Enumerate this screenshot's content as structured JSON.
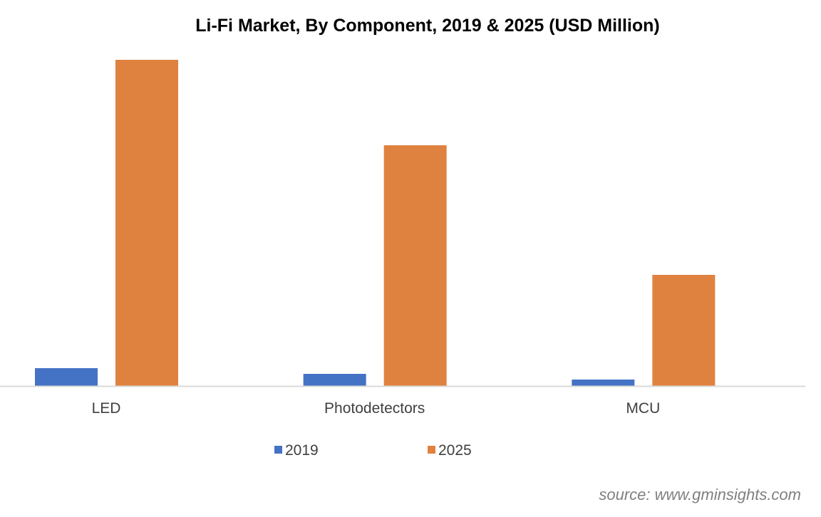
{
  "chart_data": {
    "type": "bar",
    "title": "Li-Fi Market, By Component, 2019 & 2025 (USD Million)",
    "categories": [
      "LED",
      "Photodetectors",
      "MCU"
    ],
    "series": [
      {
        "name": "2019",
        "color": "#4472c4",
        "values": [
          25,
          17,
          9
        ]
      },
      {
        "name": "2025",
        "color": "#e0823f",
        "values": [
          458,
          338,
          156
        ]
      }
    ],
    "ylim": [
      0,
      470
    ],
    "y_axis_shown": false,
    "grid": false,
    "legend": "bottom-center",
    "xlabel": "",
    "ylabel": ""
  },
  "source": "source: www.gminsights.com"
}
